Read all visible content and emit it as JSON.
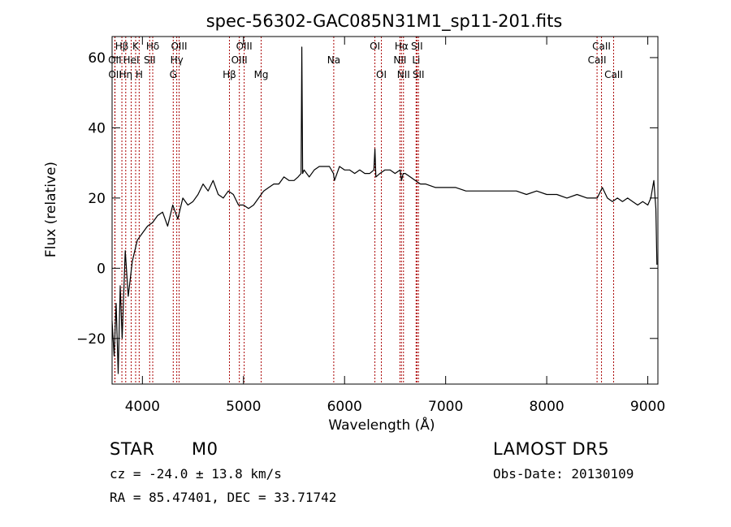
{
  "chart_data": {
    "type": "line",
    "title": "spec-56302-GAC085N31M1_sp11-201.fits",
    "xlabel": "Wavelength (Å)",
    "ylabel": "Flux (relative)",
    "xlim": [
      3700,
      9100
    ],
    "ylim": [
      -33,
      66
    ],
    "xticks": [
      4000,
      5000,
      6000,
      7000,
      8000,
      9000
    ],
    "yticks": [
      -20,
      0,
      20,
      40,
      60
    ],
    "grid": false,
    "line_color": "#000000",
    "marker_color": "#aa0000",
    "lines": [
      {
        "label": "Hβ",
        "x": 3797,
        "row": 1
      },
      {
        "label": "K",
        "x": 3933,
        "row": 1
      },
      {
        "label": "Hδ",
        "x": 4102,
        "row": 1
      },
      {
        "label": "OIII",
        "x": 4363,
        "row": 1
      },
      {
        "label": "OIII",
        "x": 5007,
        "row": 1
      },
      {
        "label": "OI",
        "x": 6300,
        "row": 1
      },
      {
        "label": "Hα",
        "x": 6563,
        "row": 1
      },
      {
        "label": "SII",
        "x": 6716,
        "row": 1
      },
      {
        "label": "CaII",
        "x": 8542,
        "row": 1
      },
      {
        "label": "OII",
        "x": 3727,
        "row": 2
      },
      {
        "label": "HeI",
        "x": 3889,
        "row": 2
      },
      {
        "label": "SII",
        "x": 4072,
        "row": 2
      },
      {
        "label": "Hγ",
        "x": 4340,
        "row": 2
      },
      {
        "label": "OIII",
        "x": 4959,
        "row": 2
      },
      {
        "label": "Na",
        "x": 5893,
        "row": 2
      },
      {
        "label": "NII",
        "x": 6548,
        "row": 2
      },
      {
        "label": "Li",
        "x": 6708,
        "row": 2
      },
      {
        "label": "CaII",
        "x": 8498,
        "row": 2
      },
      {
        "label": "OII",
        "x": 3729,
        "row": 3
      },
      {
        "label": "Hη",
        "x": 3835,
        "row": 3
      },
      {
        "label": "H",
        "x": 3968,
        "row": 3
      },
      {
        "label": "G",
        "x": 4305,
        "row": 3
      },
      {
        "label": "Hβ",
        "x": 4861,
        "row": 3
      },
      {
        "label": "Mg",
        "x": 5175,
        "row": 3
      },
      {
        "label": "OI",
        "x": 6364,
        "row": 3
      },
      {
        "label": "NII",
        "x": 6583,
        "row": 3
      },
      {
        "label": "SII",
        "x": 6731,
        "row": 3
      },
      {
        "label": "CaII",
        "x": 8662,
        "row": 3
      }
    ],
    "series": [
      {
        "x": [
          3700,
          3720,
          3740,
          3760,
          3780,
          3800,
          3830,
          3860,
          3900,
          3950,
          4000,
          4050,
          4100,
          4150,
          4200,
          4250,
          4300,
          4350,
          4400,
          4450,
          4500,
          4550,
          4600,
          4650,
          4700,
          4750,
          4800,
          4850,
          4900,
          4950,
          5000,
          5050,
          5100,
          5150,
          5200,
          5250,
          5300,
          5350,
          5400,
          5450,
          5500,
          5540,
          5570,
          5577,
          5585,
          5600,
          5650,
          5700,
          5750,
          5800,
          5850,
          5890,
          5900,
          5950,
          6000,
          6050,
          6100,
          6150,
          6200,
          6250,
          6290,
          6300,
          6310,
          6350,
          6400,
          6450,
          6500,
          6550,
          6563,
          6580,
          6600,
          6650,
          6700,
          6750,
          6800,
          6900,
          7000,
          7100,
          7200,
          7300,
          7400,
          7500,
          7600,
          7700,
          7800,
          7900,
          8000,
          8100,
          8200,
          8300,
          8400,
          8500,
          8550,
          8600,
          8650,
          8700,
          8750,
          8800,
          8850,
          8900,
          8950,
          9000,
          9030,
          9060,
          9080,
          9090
        ],
        "y": [
          -15,
          -25,
          -10,
          -30,
          -5,
          -20,
          5,
          -8,
          2,
          8,
          10,
          12,
          13,
          15,
          16,
          12,
          18,
          14,
          20,
          18,
          19,
          21,
          24,
          22,
          25,
          21,
          20,
          22,
          21,
          18,
          18,
          17,
          18,
          20,
          22,
          23,
          24,
          24,
          26,
          25,
          25,
          26,
          27,
          63,
          27,
          28,
          26,
          28,
          29,
          29,
          29,
          27,
          25,
          29,
          28,
          28,
          27,
          28,
          27,
          27,
          28,
          34,
          26,
          27,
          28,
          28,
          27,
          28,
          25,
          27,
          27,
          26,
          25,
          24,
          24,
          23,
          23,
          23,
          22,
          22,
          22,
          22,
          22,
          22,
          21,
          22,
          21,
          21,
          20,
          21,
          20,
          20,
          23,
          20,
          19,
          20,
          19,
          20,
          19,
          18,
          19,
          18,
          20,
          25,
          17,
          1
        ]
      }
    ]
  },
  "info": {
    "object_class": "STAR",
    "subclass": "M0",
    "release": "LAMOST DR5",
    "cz": "cz = -24.0 ± 13.8 km/s",
    "obs_date": "Obs-Date: 20130109",
    "coords": "RA =  85.47401, DEC =  33.71742"
  }
}
